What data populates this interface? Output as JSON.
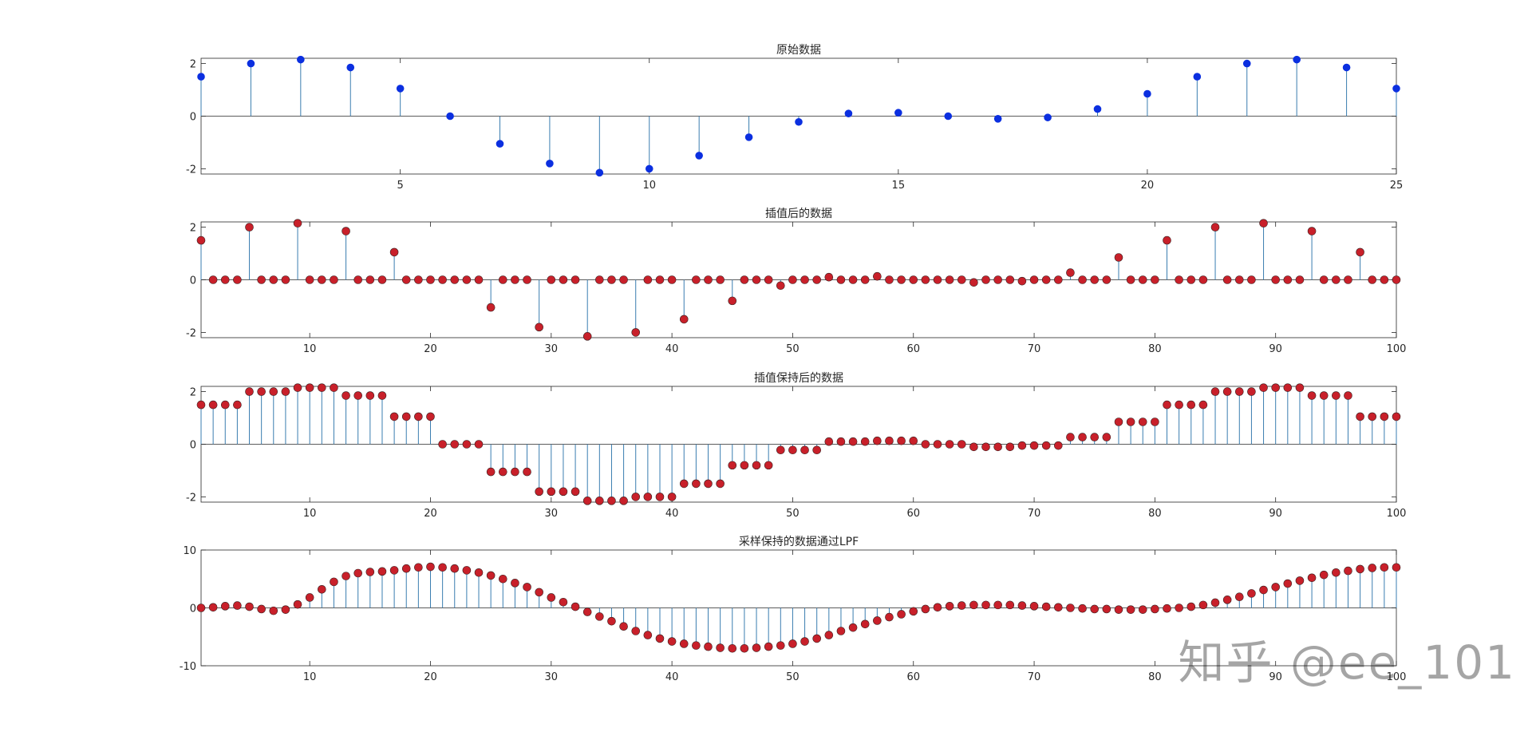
{
  "watermark": "知乎 @ee_101",
  "colors": {
    "stem": "#3a7db0",
    "original_marker": "#0b2fe0",
    "processed_marker": "#c8202a",
    "axis": "#262626",
    "zero_line": "#262626"
  },
  "chart_data": [
    {
      "type": "stem",
      "title": "原始数据",
      "xlim": [
        1,
        25
      ],
      "ylim": [
        -2.2,
        2.2
      ],
      "xticks": [
        5,
        10,
        15,
        20,
        25
      ],
      "yticks": [
        -2,
        0,
        2
      ],
      "x": [
        1,
        2,
        3,
        4,
        5,
        6,
        7,
        8,
        9,
        10,
        11,
        12,
        13,
        14,
        15,
        16,
        17,
        18,
        19,
        20,
        21,
        22,
        23,
        24,
        25
      ],
      "y": [
        1.5,
        2.0,
        2.15,
        1.85,
        1.05,
        0.0,
        -1.05,
        -1.8,
        -2.15,
        -2.0,
        -1.5,
        -0.8,
        -0.22,
        0.1,
        0.13,
        0.0,
        -0.1,
        -0.05,
        0.27,
        0.85,
        1.5,
        2.0,
        2.15,
        1.85,
        1.05
      ]
    },
    {
      "type": "stem",
      "title": "插值后的数据",
      "xlim": [
        1,
        100
      ],
      "ylim": [
        -2.2,
        2.2
      ],
      "xticks": [
        10,
        20,
        30,
        40,
        50,
        60,
        70,
        80,
        90,
        100
      ],
      "yticks": [
        -2,
        0,
        2
      ],
      "x": [
        1,
        2,
        3,
        4,
        5,
        6,
        7,
        8,
        9,
        10,
        11,
        12,
        13,
        14,
        15,
        16,
        17,
        18,
        19,
        20,
        21,
        22,
        23,
        24,
        25,
        26,
        27,
        28,
        29,
        30,
        31,
        32,
        33,
        34,
        35,
        36,
        37,
        38,
        39,
        40,
        41,
        42,
        43,
        44,
        45,
        46,
        47,
        48,
        49,
        50,
        51,
        52,
        53,
        54,
        55,
        56,
        57,
        58,
        59,
        60,
        61,
        62,
        63,
        64,
        65,
        66,
        67,
        68,
        69,
        70,
        71,
        72,
        73,
        74,
        75,
        76,
        77,
        78,
        79,
        80,
        81,
        82,
        83,
        84,
        85,
        86,
        87,
        88,
        89,
        90,
        91,
        92,
        93,
        94,
        95,
        96,
        97,
        98,
        99,
        100
      ],
      "y": [
        1.5,
        0,
        0,
        0,
        2.0,
        0,
        0,
        0,
        2.15,
        0,
        0,
        0,
        1.85,
        0,
        0,
        0,
        1.05,
        0,
        0,
        0,
        0.0,
        0,
        0,
        0,
        -1.05,
        0,
        0,
        0,
        -1.8,
        0,
        0,
        0,
        -2.15,
        0,
        0,
        0,
        -2.0,
        0,
        0,
        0,
        -1.5,
        0,
        0,
        0,
        -0.8,
        0,
        0,
        0,
        -0.22,
        0,
        0,
        0,
        0.1,
        0,
        0,
        0,
        0.13,
        0,
        0,
        0,
        0.0,
        0,
        0,
        0,
        -0.1,
        0,
        0,
        0,
        -0.05,
        0,
        0,
        0,
        0.27,
        0,
        0,
        0,
        0.85,
        0,
        0,
        0,
        1.5,
        0,
        0,
        0,
        2.0,
        0,
        0,
        0,
        2.15,
        0,
        0,
        0,
        1.85,
        0,
        0,
        0,
        1.05,
        0,
        0,
        0
      ]
    },
    {
      "type": "stem",
      "title": "插值保持后的数据",
      "xlim": [
        1,
        100
      ],
      "ylim": [
        -2.2,
        2.2
      ],
      "xticks": [
        10,
        20,
        30,
        40,
        50,
        60,
        70,
        80,
        90,
        100
      ],
      "yticks": [
        -2,
        0,
        2
      ],
      "x": [
        1,
        2,
        3,
        4,
        5,
        6,
        7,
        8,
        9,
        10,
        11,
        12,
        13,
        14,
        15,
        16,
        17,
        18,
        19,
        20,
        21,
        22,
        23,
        24,
        25,
        26,
        27,
        28,
        29,
        30,
        31,
        32,
        33,
        34,
        35,
        36,
        37,
        38,
        39,
        40,
        41,
        42,
        43,
        44,
        45,
        46,
        47,
        48,
        49,
        50,
        51,
        52,
        53,
        54,
        55,
        56,
        57,
        58,
        59,
        60,
        61,
        62,
        63,
        64,
        65,
        66,
        67,
        68,
        69,
        70,
        71,
        72,
        73,
        74,
        75,
        76,
        77,
        78,
        79,
        80,
        81,
        82,
        83,
        84,
        85,
        86,
        87,
        88,
        89,
        90,
        91,
        92,
        93,
        94,
        95,
        96,
        97,
        98,
        99,
        100
      ],
      "y": [
        1.5,
        1.5,
        1.5,
        1.5,
        2.0,
        2.0,
        2.0,
        2.0,
        2.15,
        2.15,
        2.15,
        2.15,
        1.85,
        1.85,
        1.85,
        1.85,
        1.05,
        1.05,
        1.05,
        1.05,
        0.0,
        0.0,
        0.0,
        0.0,
        -1.05,
        -1.05,
        -1.05,
        -1.05,
        -1.8,
        -1.8,
        -1.8,
        -1.8,
        -2.15,
        -2.15,
        -2.15,
        -2.15,
        -2.0,
        -2.0,
        -2.0,
        -2.0,
        -1.5,
        -1.5,
        -1.5,
        -1.5,
        -0.8,
        -0.8,
        -0.8,
        -0.8,
        -0.22,
        -0.22,
        -0.22,
        -0.22,
        0.1,
        0.1,
        0.1,
        0.1,
        0.13,
        0.13,
        0.13,
        0.13,
        0.0,
        0.0,
        0.0,
        0.0,
        -0.1,
        -0.1,
        -0.1,
        -0.1,
        -0.05,
        -0.05,
        -0.05,
        -0.05,
        0.27,
        0.27,
        0.27,
        0.27,
        0.85,
        0.85,
        0.85,
        0.85,
        1.5,
        1.5,
        1.5,
        1.5,
        2.0,
        2.0,
        2.0,
        2.0,
        2.15,
        2.15,
        2.15,
        2.15,
        1.85,
        1.85,
        1.85,
        1.85,
        1.05,
        1.05,
        1.05,
        1.05
      ]
    },
    {
      "type": "stem",
      "title": "采样保持的数据通过LPF",
      "xlim": [
        1,
        100
      ],
      "ylim": [
        -10,
        10
      ],
      "xticks": [
        10,
        20,
        30,
        40,
        50,
        60,
        70,
        80,
        90,
        100
      ],
      "yticks": [
        -10,
        0,
        10
      ],
      "x": [
        1,
        2,
        3,
        4,
        5,
        6,
        7,
        8,
        9,
        10,
        11,
        12,
        13,
        14,
        15,
        16,
        17,
        18,
        19,
        20,
        21,
        22,
        23,
        24,
        25,
        26,
        27,
        28,
        29,
        30,
        31,
        32,
        33,
        34,
        35,
        36,
        37,
        38,
        39,
        40,
        41,
        42,
        43,
        44,
        45,
        46,
        47,
        48,
        49,
        50,
        51,
        52,
        53,
        54,
        55,
        56,
        57,
        58,
        59,
        60,
        61,
        62,
        63,
        64,
        65,
        66,
        67,
        68,
        69,
        70,
        71,
        72,
        73,
        74,
        75,
        76,
        77,
        78,
        79,
        80,
        81,
        82,
        83,
        84,
        85,
        86,
        87,
        88,
        89,
        90,
        91,
        92,
        93,
        94,
        95,
        96,
        97,
        98,
        99,
        100
      ],
      "y": [
        0.0,
        0.1,
        0.3,
        0.4,
        0.2,
        -0.2,
        -0.5,
        -0.3,
        0.6,
        1.8,
        3.2,
        4.5,
        5.5,
        6.0,
        6.2,
        6.3,
        6.5,
        6.8,
        7.0,
        7.1,
        7.0,
        6.8,
        6.5,
        6.1,
        5.6,
        5.0,
        4.3,
        3.6,
        2.7,
        1.8,
        1.0,
        0.2,
        -0.7,
        -1.5,
        -2.3,
        -3.2,
        -4.0,
        -4.7,
        -5.3,
        -5.8,
        -6.2,
        -6.5,
        -6.7,
        -6.9,
        -7.0,
        -7.0,
        -6.9,
        -6.7,
        -6.5,
        -6.2,
        -5.8,
        -5.3,
        -4.7,
        -4.0,
        -3.4,
        -2.8,
        -2.2,
        -1.6,
        -1.1,
        -0.6,
        -0.2,
        0.1,
        0.3,
        0.4,
        0.5,
        0.5,
        0.5,
        0.5,
        0.4,
        0.3,
        0.2,
        0.1,
        0.0,
        -0.1,
        -0.2,
        -0.2,
        -0.3,
        -0.3,
        -0.3,
        -0.2,
        -0.1,
        0.0,
        0.2,
        0.5,
        0.9,
        1.4,
        1.9,
        2.5,
        3.1,
        3.6,
        4.2,
        4.7,
        5.2,
        5.7,
        6.1,
        6.4,
        6.7,
        6.9,
        7.0,
        7.0
      ]
    }
  ]
}
